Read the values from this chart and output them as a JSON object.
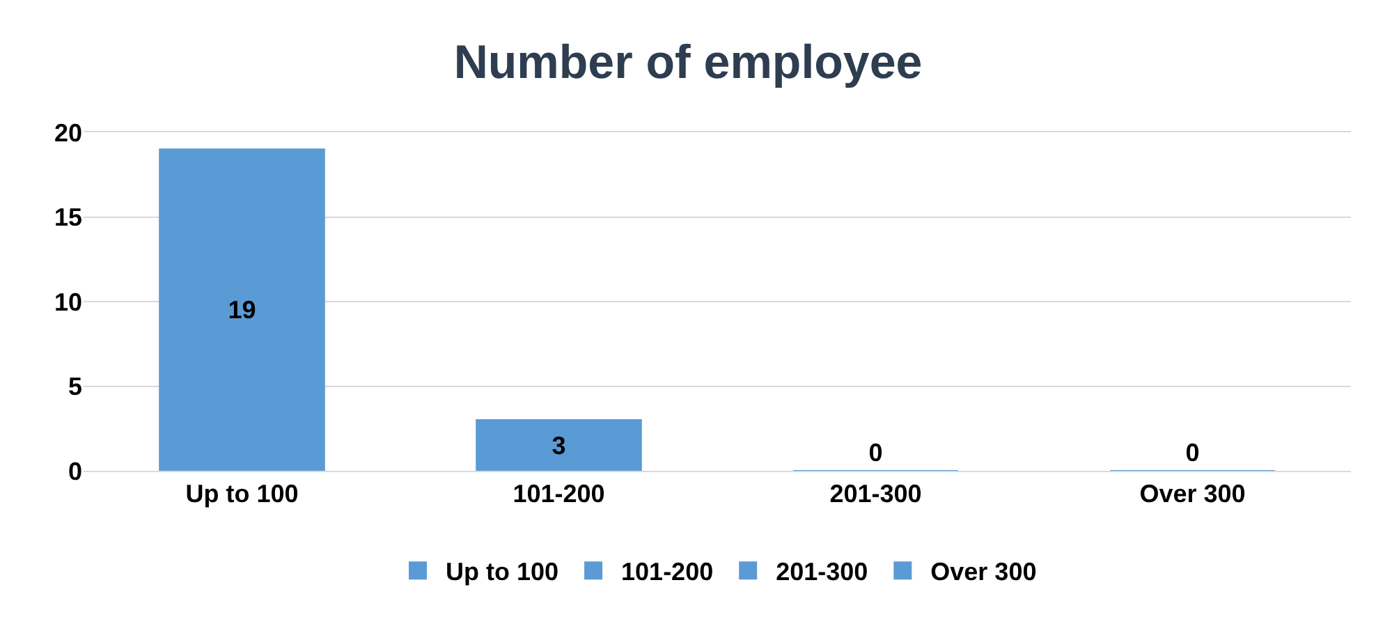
{
  "chart_data": {
    "type": "bar",
    "title": "Number of employee",
    "categories": [
      "Up to 100",
      "101-200",
      "201-300",
      "Over 300"
    ],
    "series": [
      {
        "name": "Up to 100",
        "color": "#5b9bd5",
        "values": [
          19,
          null,
          null,
          null
        ]
      },
      {
        "name": "101-200",
        "color": "#5b9bd5",
        "values": [
          null,
          3,
          null,
          null
        ]
      },
      {
        "name": "201-300",
        "color": "#5b9bd5",
        "values": [
          null,
          null,
          0,
          null
        ]
      },
      {
        "name": "Over 300",
        "color": "#5b9bd5",
        "values": [
          null,
          null,
          null,
          0
        ]
      }
    ],
    "ylim": [
      0,
      20
    ],
    "yticks": [
      0,
      5,
      10,
      15,
      20
    ],
    "grid": "y",
    "legend": "bottom",
    "data_labels": true
  }
}
